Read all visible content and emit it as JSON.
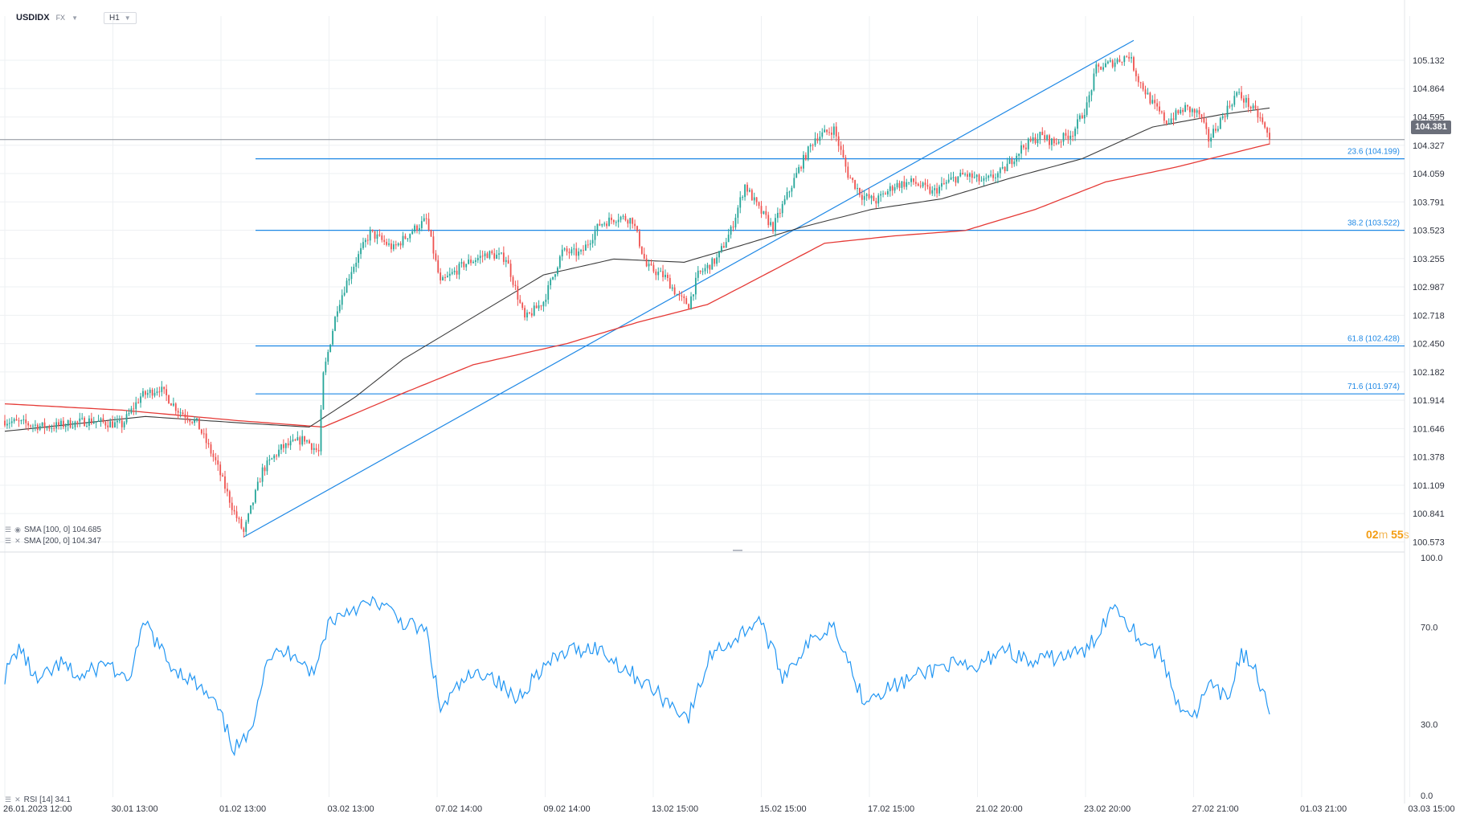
{
  "header": {
    "symbol": "USDIDX",
    "market": "FX",
    "timeframe": "H1"
  },
  "legend": {
    "sma100": "SMA [100, 0] 104.685",
    "sma200": "SMA [200, 0] 104.347",
    "rsi": "RSI [14] 34.1"
  },
  "countdown": {
    "minutes": "02",
    "m": "m",
    "seconds": "55",
    "s": "s"
  },
  "current_price": "104.381",
  "colors": {
    "up": "#26a69a",
    "down": "#ef5350",
    "sma100": "#3b3b3b",
    "sma200": "#e53935",
    "fib": "#1e88e5",
    "rsi": "#2196f3"
  },
  "chart_data": [
    {
      "type": "candlestick",
      "title": "",
      "y_ticks": [
        "105.132",
        "104.864",
        "104.595",
        "104.327",
        "104.059",
        "103.791",
        "103.523",
        "103.255",
        "102.987",
        "102.718",
        "102.450",
        "102.182",
        "101.914",
        "101.646",
        "101.378",
        "101.109",
        "100.841",
        "100.573"
      ],
      "x_ticks": [
        "26.01.2023 12:00",
        "30.01 13:00",
        "01.02 13:00",
        "03.02 13:00",
        "07.02 14:00",
        "09.02 14:00",
        "13.02 15:00",
        "15.02 15:00",
        "17.02 15:00",
        "21.02 20:00",
        "23.02 20:00",
        "27.02 21:00",
        "01.03 21:00",
        "03.03 15:00"
      ],
      "ylim": [
        100.5,
        105.55
      ],
      "keypoints": [
        {
          "x": 0,
          "y": 101.72
        },
        {
          "x": 18,
          "y": 101.66
        },
        {
          "x": 36,
          "y": 101.72
        },
        {
          "x": 50,
          "y": 101.68
        },
        {
          "x": 58,
          "y": 101.95
        },
        {
          "x": 66,
          "y": 102.03
        },
        {
          "x": 74,
          "y": 101.82
        },
        {
          "x": 82,
          "y": 101.7
        },
        {
          "x": 90,
          "y": 101.33
        },
        {
          "x": 98,
          "y": 100.85
        },
        {
          "x": 102,
          "y": 100.66
        },
        {
          "x": 110,
          "y": 101.25
        },
        {
          "x": 118,
          "y": 101.46
        },
        {
          "x": 128,
          "y": 101.55
        },
        {
          "x": 134,
          "y": 101.42
        },
        {
          "x": 136,
          "y": 102.15
        },
        {
          "x": 142,
          "y": 102.8
        },
        {
          "x": 148,
          "y": 103.15
        },
        {
          "x": 156,
          "y": 103.5
        },
        {
          "x": 166,
          "y": 103.35
        },
        {
          "x": 174,
          "y": 103.52
        },
        {
          "x": 180,
          "y": 103.62
        },
        {
          "x": 186,
          "y": 103.02
        },
        {
          "x": 196,
          "y": 103.2
        },
        {
          "x": 206,
          "y": 103.3
        },
        {
          "x": 214,
          "y": 103.26
        },
        {
          "x": 222,
          "y": 102.68
        },
        {
          "x": 230,
          "y": 102.85
        },
        {
          "x": 238,
          "y": 103.32
        },
        {
          "x": 246,
          "y": 103.3
        },
        {
          "x": 254,
          "y": 103.58
        },
        {
          "x": 262,
          "y": 103.65
        },
        {
          "x": 268,
          "y": 103.62
        },
        {
          "x": 274,
          "y": 103.18
        },
        {
          "x": 282,
          "y": 103.08
        },
        {
          "x": 288,
          "y": 102.88
        },
        {
          "x": 292,
          "y": 102.82
        },
        {
          "x": 296,
          "y": 103.1
        },
        {
          "x": 304,
          "y": 103.25
        },
        {
          "x": 310,
          "y": 103.52
        },
        {
          "x": 316,
          "y": 103.95
        },
        {
          "x": 322,
          "y": 103.72
        },
        {
          "x": 328,
          "y": 103.55
        },
        {
          "x": 334,
          "y": 103.85
        },
        {
          "x": 340,
          "y": 104.15
        },
        {
          "x": 346,
          "y": 104.4
        },
        {
          "x": 354,
          "y": 104.48
        },
        {
          "x": 360,
          "y": 104.05
        },
        {
          "x": 366,
          "y": 103.85
        },
        {
          "x": 372,
          "y": 103.8
        },
        {
          "x": 380,
          "y": 103.95
        },
        {
          "x": 388,
          "y": 103.98
        },
        {
          "x": 396,
          "y": 103.88
        },
        {
          "x": 404,
          "y": 104.0
        },
        {
          "x": 410,
          "y": 104.05
        },
        {
          "x": 418,
          "y": 103.98
        },
        {
          "x": 426,
          "y": 104.08
        },
        {
          "x": 434,
          "y": 104.3
        },
        {
          "x": 442,
          "y": 104.42
        },
        {
          "x": 448,
          "y": 104.35
        },
        {
          "x": 456,
          "y": 104.45
        },
        {
          "x": 462,
          "y": 104.7
        },
        {
          "x": 466,
          "y": 105.05
        },
        {
          "x": 474,
          "y": 105.12
        },
        {
          "x": 480,
          "y": 105.18
        },
        {
          "x": 484,
          "y": 104.95
        },
        {
          "x": 490,
          "y": 104.72
        },
        {
          "x": 496,
          "y": 104.55
        },
        {
          "x": 504,
          "y": 104.68
        },
        {
          "x": 510,
          "y": 104.62
        },
        {
          "x": 514,
          "y": 104.38
        },
        {
          "x": 520,
          "y": 104.6
        },
        {
          "x": 526,
          "y": 104.82
        },
        {
          "x": 530,
          "y": 104.74
        },
        {
          "x": 536,
          "y": 104.58
        },
        {
          "x": 540,
          "y": 104.381
        }
      ],
      "sma100_points": [
        {
          "x": 0,
          "y": 101.62
        },
        {
          "x": 60,
          "y": 101.76
        },
        {
          "x": 100,
          "y": 101.7
        },
        {
          "x": 130,
          "y": 101.66
        },
        {
          "x": 150,
          "y": 101.95
        },
        {
          "x": 170,
          "y": 102.3
        },
        {
          "x": 200,
          "y": 102.7
        },
        {
          "x": 230,
          "y": 103.1
        },
        {
          "x": 260,
          "y": 103.25
        },
        {
          "x": 290,
          "y": 103.22
        },
        {
          "x": 310,
          "y": 103.35
        },
        {
          "x": 340,
          "y": 103.55
        },
        {
          "x": 370,
          "y": 103.72
        },
        {
          "x": 400,
          "y": 103.82
        },
        {
          "x": 430,
          "y": 104.02
        },
        {
          "x": 460,
          "y": 104.2
        },
        {
          "x": 490,
          "y": 104.5
        },
        {
          "x": 520,
          "y": 104.62
        },
        {
          "x": 540,
          "y": 104.68
        }
      ],
      "sma200_points": [
        {
          "x": 0,
          "y": 101.88
        },
        {
          "x": 50,
          "y": 101.82
        },
        {
          "x": 100,
          "y": 101.72
        },
        {
          "x": 136,
          "y": 101.66
        },
        {
          "x": 170,
          "y": 101.98
        },
        {
          "x": 200,
          "y": 102.25
        },
        {
          "x": 240,
          "y": 102.45
        },
        {
          "x": 270,
          "y": 102.65
        },
        {
          "x": 300,
          "y": 102.82
        },
        {
          "x": 320,
          "y": 103.05
        },
        {
          "x": 350,
          "y": 103.4
        },
        {
          "x": 380,
          "y": 103.47
        },
        {
          "x": 410,
          "y": 103.52
        },
        {
          "x": 440,
          "y": 103.72
        },
        {
          "x": 470,
          "y": 103.98
        },
        {
          "x": 500,
          "y": 104.12
        },
        {
          "x": 540,
          "y": 104.34
        }
      ],
      "fib_levels": [
        {
          "label": "23.6 (104.199)",
          "value": 104.199
        },
        {
          "label": "38.2 (103.522)",
          "value": 103.522
        },
        {
          "label": "61.8 (102.428)",
          "value": 102.428
        },
        {
          "label": "71.6 (101.974)",
          "value": 101.974
        }
      ],
      "trendline": {
        "x1": 102,
        "y1": 100.62,
        "x2": 482,
        "y2": 105.32
      }
    },
    {
      "type": "line",
      "title": "",
      "series": [
        {
          "name": "RSI [14]",
          "values_note": "",
          "keypoints": [
            {
              "x": 0,
              "y": 50
            },
            {
              "x": 6,
              "y": 62
            },
            {
              "x": 14,
              "y": 47
            },
            {
              "x": 24,
              "y": 55
            },
            {
              "x": 32,
              "y": 49
            },
            {
              "x": 44,
              "y": 56
            },
            {
              "x": 52,
              "y": 46
            },
            {
              "x": 60,
              "y": 72
            },
            {
              "x": 70,
              "y": 55
            },
            {
              "x": 80,
              "y": 48
            },
            {
              "x": 90,
              "y": 38
            },
            {
              "x": 98,
              "y": 20
            },
            {
              "x": 104,
              "y": 24
            },
            {
              "x": 112,
              "y": 58
            },
            {
              "x": 124,
              "y": 60
            },
            {
              "x": 132,
              "y": 50
            },
            {
              "x": 138,
              "y": 72
            },
            {
              "x": 148,
              "y": 78
            },
            {
              "x": 160,
              "y": 80
            },
            {
              "x": 170,
              "y": 72
            },
            {
              "x": 180,
              "y": 68
            },
            {
              "x": 186,
              "y": 36
            },
            {
              "x": 196,
              "y": 48
            },
            {
              "x": 206,
              "y": 52
            },
            {
              "x": 218,
              "y": 40
            },
            {
              "x": 228,
              "y": 52
            },
            {
              "x": 240,
              "y": 60
            },
            {
              "x": 252,
              "y": 62
            },
            {
              "x": 262,
              "y": 55
            },
            {
              "x": 272,
              "y": 48
            },
            {
              "x": 282,
              "y": 40
            },
            {
              "x": 292,
              "y": 33
            },
            {
              "x": 302,
              "y": 60
            },
            {
              "x": 312,
              "y": 65
            },
            {
              "x": 322,
              "y": 74
            },
            {
              "x": 332,
              "y": 50
            },
            {
              "x": 342,
              "y": 62
            },
            {
              "x": 354,
              "y": 72
            },
            {
              "x": 366,
              "y": 41
            },
            {
              "x": 378,
              "y": 45
            },
            {
              "x": 390,
              "y": 50
            },
            {
              "x": 402,
              "y": 55
            },
            {
              "x": 414,
              "y": 52
            },
            {
              "x": 426,
              "y": 62
            },
            {
              "x": 438,
              "y": 55
            },
            {
              "x": 450,
              "y": 58
            },
            {
              "x": 462,
              "y": 60
            },
            {
              "x": 474,
              "y": 80
            },
            {
              "x": 484,
              "y": 66
            },
            {
              "x": 494,
              "y": 58
            },
            {
              "x": 500,
              "y": 40
            },
            {
              "x": 508,
              "y": 33
            },
            {
              "x": 514,
              "y": 46
            },
            {
              "x": 522,
              "y": 40
            },
            {
              "x": 528,
              "y": 60
            },
            {
              "x": 534,
              "y": 52
            },
            {
              "x": 540,
              "y": 34.1
            }
          ]
        }
      ],
      "y_ticks": [
        "100.0",
        "70.0",
        "30.0",
        "0.0"
      ],
      "ylim": [
        0,
        100
      ]
    }
  ]
}
